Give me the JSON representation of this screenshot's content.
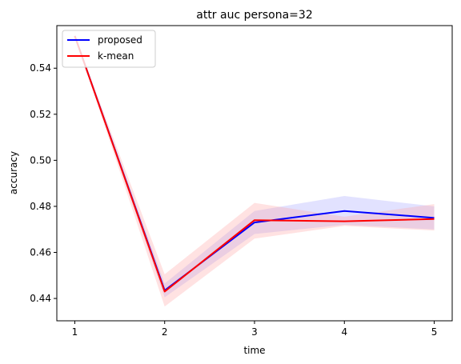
{
  "chart_data": {
    "type": "line",
    "title": "attr auc persona=32",
    "xlabel": "time",
    "ylabel": "accuracy",
    "x": [
      1,
      2,
      3,
      4,
      5
    ],
    "xlim": [
      0.8,
      5.2
    ],
    "ylim": [
      0.4303,
      0.5585
    ],
    "xticks": [
      "1",
      "2",
      "3",
      "4",
      "5"
    ],
    "yticks": [
      0.44,
      0.46,
      0.48,
      0.5,
      0.52,
      0.54
    ],
    "yticklabels": [
      "0.44",
      "0.46",
      "0.48",
      "0.50",
      "0.52",
      "0.54"
    ],
    "grid": false,
    "legend_position": "top-left",
    "series": [
      {
        "name": "proposed",
        "color": "#0000ff",
        "band_color": "#a0a0ff",
        "values": [
          0.554,
          0.4435,
          0.473,
          0.478,
          0.475
        ],
        "lower": [
          0.554,
          0.4405,
          0.468,
          0.472,
          0.47
        ],
        "upper": [
          0.554,
          0.4465,
          0.478,
          0.4845,
          0.48
        ]
      },
      {
        "name": "k-mean",
        "color": "#ff0000",
        "band_color": "#ffa0a0",
        "values": [
          0.554,
          0.443,
          0.474,
          0.4735,
          0.4745
        ],
        "lower": [
          0.554,
          0.4365,
          0.466,
          0.4715,
          0.4695
        ],
        "upper": [
          0.554,
          0.4505,
          0.4815,
          0.4755,
          0.481
        ]
      }
    ]
  }
}
